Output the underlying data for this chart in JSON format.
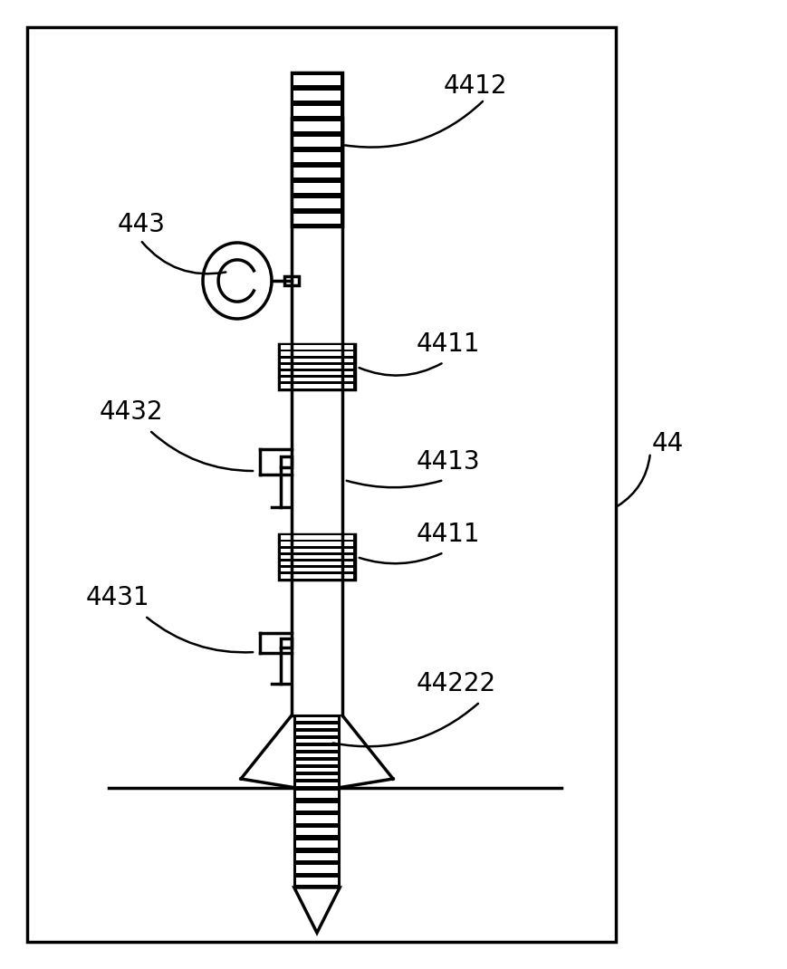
{
  "bg_color": "#ffffff",
  "line_color": "#000000",
  "fig_width": 8.7,
  "fig_height": 10.7,
  "label_fontsize": 20
}
